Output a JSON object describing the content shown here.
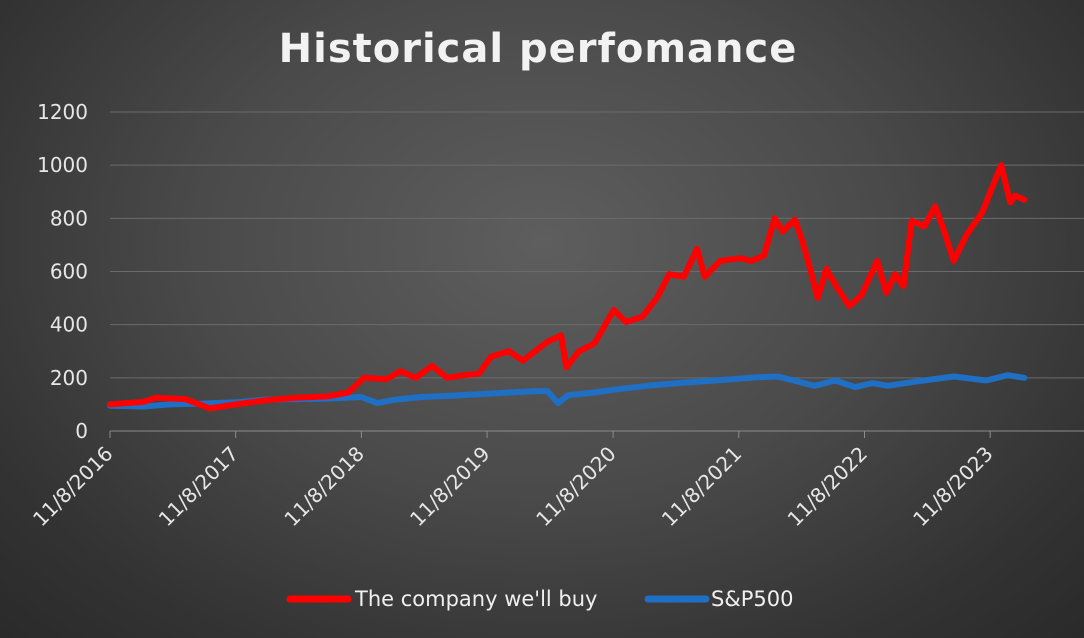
{
  "chart_data": {
    "type": "line",
    "title": "Historical perfomance",
    "xlabel": "",
    "ylabel": "",
    "ylim": [
      0,
      1200
    ],
    "y_ticks": [
      0,
      200,
      400,
      600,
      800,
      1000,
      1200
    ],
    "x_tick_labels": [
      "11/8/2016",
      "11/8/2017",
      "11/8/2018",
      "11/8/2019",
      "11/8/2020",
      "11/8/2021",
      "11/8/2022",
      "11/8/2023"
    ],
    "xlim": [
      "2016-11-08",
      "2024-02-20"
    ],
    "grid": "horizontal",
    "legend_position": "bottom",
    "series": [
      {
        "name": "The company we'll buy",
        "color": "#ff0000",
        "points": [
          [
            "2016-11-08",
            100
          ],
          [
            "2017-02-15",
            110
          ],
          [
            "2017-03-20",
            125
          ],
          [
            "2017-06-15",
            120
          ],
          [
            "2017-08-25",
            85
          ],
          [
            "2017-11-08",
            100
          ],
          [
            "2018-02-01",
            115
          ],
          [
            "2018-05-01",
            125
          ],
          [
            "2018-08-01",
            130
          ],
          [
            "2018-10-01",
            145
          ],
          [
            "2018-11-15",
            200
          ],
          [
            "2019-01-20",
            195
          ],
          [
            "2019-03-01",
            225
          ],
          [
            "2019-04-15",
            200
          ],
          [
            "2019-06-01",
            245
          ],
          [
            "2019-07-15",
            200
          ],
          [
            "2019-09-01",
            210
          ],
          [
            "2019-10-15",
            215
          ],
          [
            "2019-11-20",
            280
          ],
          [
            "2020-01-10",
            300
          ],
          [
            "2020-02-20",
            265
          ],
          [
            "2020-05-01",
            335
          ],
          [
            "2020-06-10",
            360
          ],
          [
            "2020-06-25",
            240
          ],
          [
            "2020-08-01",
            300
          ],
          [
            "2020-09-15",
            330
          ],
          [
            "2020-11-10",
            455
          ],
          [
            "2020-12-15",
            410
          ],
          [
            "2021-02-01",
            430
          ],
          [
            "2021-03-15",
            500
          ],
          [
            "2021-04-20",
            590
          ],
          [
            "2021-06-01",
            580
          ],
          [
            "2021-07-10",
            685
          ],
          [
            "2021-08-01",
            580
          ],
          [
            "2021-09-15",
            640
          ],
          [
            "2021-11-10",
            650
          ],
          [
            "2021-12-15",
            640
          ],
          [
            "2022-01-20",
            660
          ],
          [
            "2022-02-20",
            800
          ],
          [
            "2022-03-15",
            750
          ],
          [
            "2022-04-20",
            795
          ],
          [
            "2022-05-10",
            720
          ],
          [
            "2022-06-01",
            620
          ],
          [
            "2022-06-25",
            500
          ],
          [
            "2022-07-20",
            610
          ],
          [
            "2022-08-20",
            540
          ],
          [
            "2022-09-25",
            470
          ],
          [
            "2022-10-30",
            510
          ],
          [
            "2022-12-15",
            640
          ],
          [
            "2023-01-10",
            520
          ],
          [
            "2023-02-05",
            590
          ],
          [
            "2023-03-01",
            545
          ],
          [
            "2023-03-25",
            790
          ],
          [
            "2023-05-01",
            770
          ],
          [
            "2023-06-01",
            845
          ],
          [
            "2023-06-25",
            760
          ],
          [
            "2023-07-25",
            640
          ],
          [
            "2023-09-01",
            740
          ],
          [
            "2023-10-15",
            820
          ],
          [
            "2023-11-15",
            920
          ],
          [
            "2023-12-10",
            1000
          ],
          [
            "2024-01-05",
            860
          ],
          [
            "2024-01-20",
            885
          ],
          [
            "2024-02-15",
            870
          ]
        ]
      },
      {
        "name": "S&P500",
        "color": "#1f6fc5",
        "points": [
          [
            "2016-11-08",
            95
          ],
          [
            "2017-02-15",
            92
          ],
          [
            "2017-05-01",
            100
          ],
          [
            "2017-08-01",
            103
          ],
          [
            "2017-11-08",
            108
          ],
          [
            "2018-02-01",
            118
          ],
          [
            "2018-05-01",
            120
          ],
          [
            "2018-08-01",
            122
          ],
          [
            "2018-11-08",
            128
          ],
          [
            "2018-12-24",
            105
          ],
          [
            "2019-02-15",
            118
          ],
          [
            "2019-05-01",
            128
          ],
          [
            "2019-08-01",
            133
          ],
          [
            "2019-11-08",
            140
          ],
          [
            "2020-01-10",
            145
          ],
          [
            "2020-04-01",
            150
          ],
          [
            "2020-05-01",
            150
          ],
          [
            "2020-06-01",
            105
          ],
          [
            "2020-07-01",
            135
          ],
          [
            "2020-09-15",
            145
          ],
          [
            "2020-11-08",
            155
          ],
          [
            "2021-02-15",
            170
          ],
          [
            "2021-05-15",
            180
          ],
          [
            "2021-09-01",
            190
          ],
          [
            "2021-12-31",
            202
          ],
          [
            "2022-03-01",
            205
          ],
          [
            "2022-06-16",
            170
          ],
          [
            "2022-08-15",
            190
          ],
          [
            "2022-10-12",
            165
          ],
          [
            "2022-12-01",
            180
          ],
          [
            "2023-01-15",
            170
          ],
          [
            "2023-04-01",
            185
          ],
          [
            "2023-07-25",
            205
          ],
          [
            "2023-10-27",
            190
          ],
          [
            "2023-12-29",
            210
          ],
          [
            "2024-02-15",
            200
          ]
        ]
      }
    ]
  }
}
